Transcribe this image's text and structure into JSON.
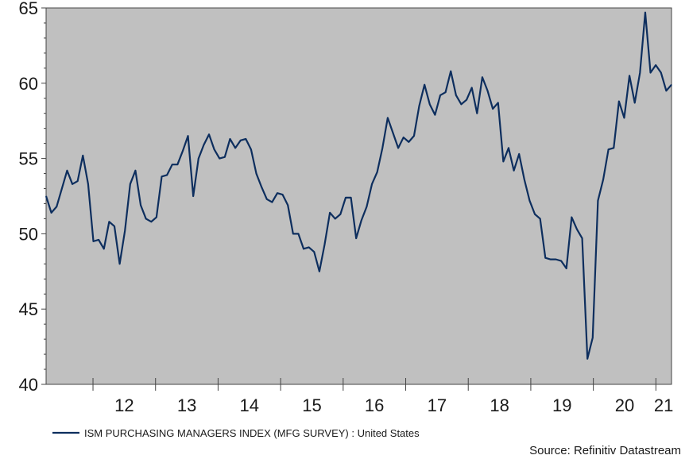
{
  "chart_data": {
    "type": "line",
    "title": "",
    "xlabel": "",
    "ylabel": "",
    "ylim": [
      40,
      65
    ],
    "y_ticks": [
      40,
      45,
      50,
      55,
      60,
      65
    ],
    "x_tick_labels": [
      "12",
      "13",
      "14",
      "15",
      "16",
      "17",
      "18",
      "19",
      "20",
      "21"
    ],
    "grid": false,
    "legend_position": "bottom-left",
    "background_color": "#c0c0c0",
    "line_color": "#0d2e5e",
    "source": "Source: Refinitiv Datastream",
    "x_start": "2011-04",
    "x_end": "2021-04",
    "series": [
      {
        "name": "ISM PURCHASING MANAGERS INDEX (MFG SURVEY) : United States",
        "values": [
          52.5,
          51.4,
          51.8,
          53.0,
          54.2,
          53.3,
          53.5,
          55.2,
          53.3,
          49.5,
          49.6,
          49.0,
          50.8,
          50.5,
          48.0,
          50.2,
          53.3,
          54.2,
          51.9,
          51.0,
          50.8,
          51.1,
          53.8,
          53.9,
          54.6,
          54.6,
          55.5,
          56.5,
          52.5,
          55.0,
          55.9,
          56.6,
          55.6,
          55.0,
          55.1,
          56.3,
          55.7,
          56.2,
          56.3,
          55.6,
          54.0,
          53.1,
          52.3,
          52.1,
          52.7,
          52.6,
          51.9,
          50.0,
          50.0,
          49.0,
          49.1,
          48.8,
          47.5,
          49.3,
          51.4,
          51.0,
          51.3,
          52.4,
          52.4,
          49.7,
          50.9,
          51.8,
          53.3,
          54.1,
          55.7,
          57.7,
          56.7,
          55.7,
          56.4,
          56.1,
          56.5,
          58.5,
          59.9,
          58.6,
          57.9,
          59.2,
          59.4,
          60.8,
          59.2,
          58.6,
          58.9,
          59.7,
          58.0,
          60.4,
          59.5,
          58.3,
          58.7,
          54.8,
          55.7,
          54.2,
          55.3,
          53.6,
          52.2,
          51.3,
          51.0,
          48.4,
          48.3,
          48.3,
          48.2,
          47.7,
          51.1,
          50.3,
          49.7,
          41.7,
          43.1,
          52.2,
          53.6,
          55.6,
          55.7,
          58.8,
          57.7,
          60.5,
          58.7,
          60.7,
          64.7,
          60.7,
          61.2,
          60.7,
          59.5,
          59.9
        ]
      }
    ]
  }
}
